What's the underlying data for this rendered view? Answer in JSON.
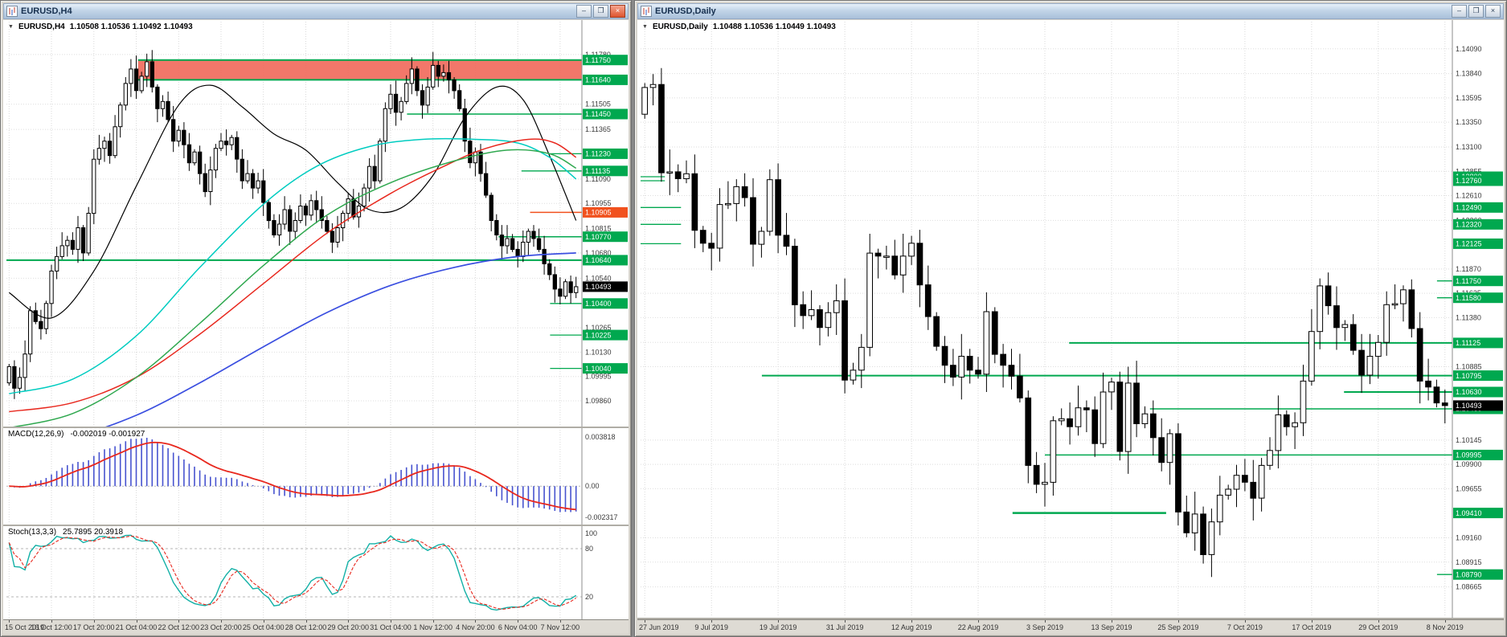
{
  "colors": {
    "level_green": "#00a84f",
    "level_orange": "#f1511e",
    "grid": "#d9d9d9",
    "bull": "#ffffff",
    "bear": "#000000",
    "current_bg": "#000000"
  },
  "left_window": {
    "title": "EURUSD,H4",
    "controls": {
      "minimize_glyph": "–",
      "restore_glyph": "❐",
      "close_glyph": "×"
    },
    "header": {
      "dropdown_glyph": "▼",
      "symbol": "EURUSD,H4",
      "ohlc": "1.10508 1.10536 1.10492 1.10493"
    },
    "price_axis": {
      "plain": [
        "1.11780",
        "1.11505",
        "1.11365",
        "1.11090",
        "1.10955",
        "1.10815",
        "1.10680",
        "1.10540",
        "1.10265",
        "1.10130",
        "1.09995",
        "1.09860"
      ],
      "green": [
        "1.11750",
        "1.11640",
        "1.11450",
        "1.11230",
        "1.11135",
        "1.10770",
        "1.10640",
        "1.10400",
        "1.10225",
        "1.10040"
      ],
      "orange": [
        "1.10905"
      ],
      "current": "1.10493"
    },
    "time_labels": [
      "15 Oct 2019",
      "16 Oct 12:00",
      "17 Oct 20:00",
      "21 Oct 04:00",
      "22 Oct 12:00",
      "23 Oct 20:00",
      "25 Oct 04:00",
      "28 Oct 12:00",
      "29 Oct 20:00",
      "31 Oct 04:00",
      "1 Nov 12:00",
      "4 Nov 20:00",
      "6 Nov 04:00",
      "7 Nov 12:00"
    ],
    "chart_data": {
      "type": "candlestick",
      "timeframe": "H4",
      "tick_step": 8,
      "wick_amp": 0.0006,
      "price_view_max": 1.119,
      "price_view_min": 1.0978,
      "closes": [
        1.1005,
        1.0993,
        1.0999,
        1.1012,
        1.1036,
        1.103,
        1.1026,
        1.104,
        1.1058,
        1.1066,
        1.1072,
        1.1075,
        1.107,
        1.1082,
        1.1068,
        1.109,
        1.112,
        1.1126,
        1.113,
        1.1122,
        1.1138,
        1.115,
        1.1162,
        1.117,
        1.1158,
        1.1166,
        1.1174,
        1.116,
        1.1148,
        1.1152,
        1.1142,
        1.113,
        1.1136,
        1.1128,
        1.1118,
        1.1124,
        1.1112,
        1.1102,
        1.1114,
        1.1126,
        1.113,
        1.1128,
        1.1132,
        1.112,
        1.1108,
        1.1112,
        1.1104,
        1.1108,
        1.1096,
        1.1086,
        1.1078,
        1.1084,
        1.1092,
        1.108,
        1.1086,
        1.1094,
        1.1089,
        1.1097,
        1.1092,
        1.1086,
        1.108,
        1.1074,
        1.1082,
        1.109,
        1.1098,
        1.1088,
        1.1094,
        1.1104,
        1.1116,
        1.1108,
        1.113,
        1.1148,
        1.1156,
        1.1146,
        1.1152,
        1.1162,
        1.117,
        1.1158,
        1.115,
        1.116,
        1.1172,
        1.1166,
        1.1168,
        1.1164,
        1.1158,
        1.1148,
        1.113,
        1.1118,
        1.1124,
        1.1112,
        1.11,
        1.1086,
        1.1078,
        1.1072,
        1.1076,
        1.107,
        1.1066,
        1.1074,
        1.108,
        1.1076,
        1.107,
        1.1062,
        1.1056,
        1.1048,
        1.1044,
        1.1052,
        1.1046,
        1.10493
      ],
      "zone": {
        "top": 1.1175,
        "bottom": 1.1164,
        "x0": 0.23,
        "fill": "#f1685a"
      },
      "levels": [
        {
          "price": 1.1175,
          "x0": 0.23,
          "color": "#00a84f",
          "w": 2
        },
        {
          "price": 1.1164,
          "x0": 0.23,
          "color": "#00a84f",
          "w": 2
        },
        {
          "price": 1.1145,
          "x0": 0.7,
          "color": "#00a84f",
          "w": 1.5
        },
        {
          "price": 1.1123,
          "x0": 0.95,
          "color": "#00a84f",
          "w": 1.3
        },
        {
          "price": 1.11135,
          "x0": 0.9,
          "color": "#00a84f",
          "w": 1.3
        },
        {
          "price": 1.10905,
          "x0": 0.915,
          "color": "#f1511e",
          "w": 1.5
        },
        {
          "price": 1.1077,
          "x0": 0.86,
          "color": "#00a84f",
          "w": 1.5
        },
        {
          "price": 1.1064,
          "x0": 0.0,
          "color": "#00a84f",
          "w": 2
        },
        {
          "price": 1.104,
          "x0": 0.95,
          "color": "#00a84f",
          "w": 1.3
        },
        {
          "price": 1.10225,
          "x0": 0.95,
          "color": "#00a84f",
          "w": 1.3
        },
        {
          "price": 1.1004,
          "x0": 0.95,
          "color": "#00a84f",
          "w": 1.3
        }
      ],
      "moving_averages": [
        {
          "color": "#000000",
          "w": 1.2,
          "points": [
            [
              0,
              1.1046
            ],
            [
              8,
              1.1032
            ],
            [
              16,
              1.1058
            ],
            [
              24,
              1.1105
            ],
            [
              32,
              1.115
            ],
            [
              38,
              1.1161
            ],
            [
              44,
              1.1149
            ],
            [
              50,
              1.1134
            ],
            [
              56,
              1.1125
            ],
            [
              62,
              1.1107
            ],
            [
              68,
              1.1092
            ],
            [
              74,
              1.1093
            ],
            [
              80,
              1.1111
            ],
            [
              86,
              1.1143
            ],
            [
              92,
              1.116
            ],
            [
              97,
              1.1153
            ],
            [
              102,
              1.1122
            ],
            [
              107,
              1.1086
            ]
          ]
        },
        {
          "color": "#00ccc0",
          "w": 1.5,
          "points": [
            [
              0,
              1.099
            ],
            [
              12,
              1.0998
            ],
            [
              24,
              1.1022
            ],
            [
              36,
              1.106
            ],
            [
              48,
              1.1095
            ],
            [
              58,
              1.1116
            ],
            [
              68,
              1.1127
            ],
            [
              78,
              1.1131
            ],
            [
              88,
              1.1131
            ],
            [
              96,
              1.1129
            ],
            [
              102,
              1.1121
            ],
            [
              107,
              1.1109
            ]
          ]
        },
        {
          "color": "#e8281e",
          "w": 1.5,
          "points": [
            [
              0,
              1.098
            ],
            [
              12,
              1.0985
            ],
            [
              24,
              1.0999
            ],
            [
              36,
              1.1023
            ],
            [
              48,
              1.1051
            ],
            [
              60,
              1.1079
            ],
            [
              72,
              1.1101
            ],
            [
              82,
              1.1116
            ],
            [
              90,
              1.1126
            ],
            [
              98,
              1.1131
            ],
            [
              103,
              1.1129
            ],
            [
              107,
              1.1121
            ]
          ]
        },
        {
          "color": "#2fa84f",
          "w": 1.5,
          "points": [
            [
              0,
              1.0971
            ],
            [
              12,
              1.0979
            ],
            [
              24,
              1.0999
            ],
            [
              36,
              1.1029
            ],
            [
              48,
              1.1061
            ],
            [
              60,
              1.1089
            ],
            [
              72,
              1.1107
            ],
            [
              84,
              1.1119
            ],
            [
              94,
              1.1125
            ],
            [
              102,
              1.1123
            ],
            [
              107,
              1.1115
            ]
          ]
        },
        {
          "color": "#3b4fe0",
          "w": 1.7,
          "points": [
            [
              0,
              1.0961
            ],
            [
              12,
              1.0966
            ],
            [
              24,
              1.0978
            ],
            [
              36,
              1.0996
            ],
            [
              48,
              1.1016
            ],
            [
              60,
              1.1035
            ],
            [
              72,
              1.105
            ],
            [
              84,
              1.106
            ],
            [
              96,
              1.1066
            ],
            [
              107,
              1.1068
            ]
          ]
        }
      ]
    },
    "macd": {
      "label": "MACD(12,26,9)",
      "values": "-0.002019 -0.001927",
      "axis_labels": [
        "0.003818",
        "0.00",
        "-0.002317"
      ],
      "vmax": 0.003818,
      "vmin": -0.002317,
      "fast": 12,
      "slow": 26,
      "signal": 9,
      "hist_color": "#4753cf",
      "signal_color": "#e8281e"
    },
    "stoch": {
      "label": "Stoch(13,3,3)",
      "values": "25.7895 20.3918",
      "axis_labels": [
        "100",
        "80",
        "20"
      ],
      "k": 13,
      "slowing": 3,
      "d": 3,
      "levels": [
        80,
        20
      ],
      "main_color": "#12b0a6",
      "signal_color": "#e8281e"
    }
  },
  "right_window": {
    "title": "EURUSD,Daily",
    "controls": {
      "minimize_glyph": "–",
      "restore_glyph": "❐",
      "close_glyph": "×"
    },
    "header": {
      "dropdown_glyph": "▼",
      "symbol": "EURUSD,Daily",
      "ohlc": "1.10488 1.10536 1.10449 1.10493"
    },
    "price_axis": {
      "plain": [
        "1.14090",
        "1.13840",
        "1.13595",
        "1.13350",
        "1.13100",
        "1.12855",
        "1.12610",
        "1.12360",
        "1.11870",
        "1.11625",
        "1.11380",
        "1.11130",
        "1.10885",
        "1.10145",
        "1.09900",
        "1.09655",
        "1.09160",
        "1.08915",
        "1.08665"
      ],
      "green": [
        "1.12800",
        "1.12760",
        "1.12490",
        "1.12320",
        "1.12125",
        "1.11750",
        "1.11580",
        "1.11125",
        "1.10795",
        "1.10630",
        "1.10460",
        "1.09995",
        "1.09410",
        "1.08790"
      ],
      "orange": [],
      "current": "1.10493"
    },
    "time_labels": [
      "27 Jun 2019",
      "9 Jul 2019",
      "19 Jul 2019",
      "31 Jul 2019",
      "12 Aug 2019",
      "22 Aug 2019",
      "3 Sep 2019",
      "13 Sep 2019",
      "25 Sep 2019",
      "7 Oct 2019",
      "17 Oct 2019",
      "29 Oct 2019",
      "8 Nov 2019"
    ],
    "chart_data": {
      "type": "candlestick",
      "timeframe": "Daily",
      "tick_step": 8,
      "wick_amp": 0.0018,
      "price_view_max": 1.1425,
      "price_view_min": 1.085,
      "closes": [
        1.137,
        1.1373,
        1.1284,
        1.1285,
        1.1278,
        1.1283,
        1.1226,
        1.1213,
        1.1208,
        1.1252,
        1.1253,
        1.127,
        1.1259,
        1.1212,
        1.1225,
        1.1277,
        1.1221,
        1.121,
        1.1151,
        1.114,
        1.1146,
        1.1128,
        1.1143,
        1.1155,
        1.1075,
        1.1085,
        1.1108,
        1.1203,
        1.12,
        1.12,
        1.1181,
        1.12,
        1.1213,
        1.1171,
        1.1139,
        1.1109,
        1.109,
        1.1078,
        1.1099,
        1.1085,
        1.1081,
        1.1144,
        1.1101,
        1.109,
        1.1079,
        1.1057,
        1.0989,
        1.097,
        1.0972,
        1.1034,
        1.1036,
        1.1028,
        1.1047,
        1.1045,
        1.1011,
        1.1063,
        1.1073,
        1.1003,
        1.1072,
        1.1031,
        1.1041,
        1.1017,
        1.0992,
        1.1021,
        1.0942,
        1.0921,
        1.094,
        1.0899,
        1.0932,
        1.0959,
        1.0965,
        1.0979,
        1.0972,
        1.0956,
        1.0989,
        1.1004,
        1.104,
        1.1028,
        1.1032,
        1.1074,
        1.1124,
        1.117,
        1.115,
        1.1128,
        1.1131,
        1.1105,
        1.108,
        1.1099,
        1.1113,
        1.1151,
        1.1152,
        1.1166,
        1.1127,
        1.1074,
        1.1068,
        1.1052,
        1.10493
      ],
      "zone": null,
      "levels": [
        {
          "price": 1.128,
          "x0": 0.0,
          "x1": 0.03,
          "color": "#00a84f",
          "w": 1.3
        },
        {
          "price": 1.1276,
          "x0": 0.0,
          "x1": 0.03,
          "color": "#00a84f",
          "w": 1.3
        },
        {
          "price": 1.1249,
          "x0": 0.0,
          "x1": 0.05,
          "color": "#00a84f",
          "w": 1.3
        },
        {
          "price": 1.1232,
          "x0": 0.0,
          "x1": 0.05,
          "color": "#00a84f",
          "w": 1.3
        },
        {
          "price": 1.12125,
          "x0": 0.0,
          "x1": 0.05,
          "color": "#00a84f",
          "w": 1.3
        },
        {
          "price": 1.1175,
          "x0": 0.985,
          "color": "#00a84f",
          "w": 1.3
        },
        {
          "price": 1.1158,
          "x0": 0.985,
          "color": "#00a84f",
          "w": 1.3
        },
        {
          "price": 1.11125,
          "x0": 0.53,
          "color": "#00a84f",
          "w": 2
        },
        {
          "price": 1.10795,
          "x0": 0.15,
          "color": "#00a84f",
          "w": 2
        },
        {
          "price": 1.1063,
          "x0": 0.87,
          "color": "#00a84f",
          "w": 2
        },
        {
          "price": 1.1046,
          "x0": 0.63,
          "color": "#00a84f",
          "w": 1.5
        },
        {
          "price": 1.09995,
          "x0": 0.5,
          "color": "#00a84f",
          "w": 1.5
        },
        {
          "price": 1.0941,
          "x0": 0.46,
          "x1": 0.65,
          "color": "#00a84f",
          "w": 2.5
        },
        {
          "price": 1.0879,
          "x0": 0.985,
          "color": "#00a84f",
          "w": 1.3
        }
      ],
      "moving_averages": []
    }
  }
}
